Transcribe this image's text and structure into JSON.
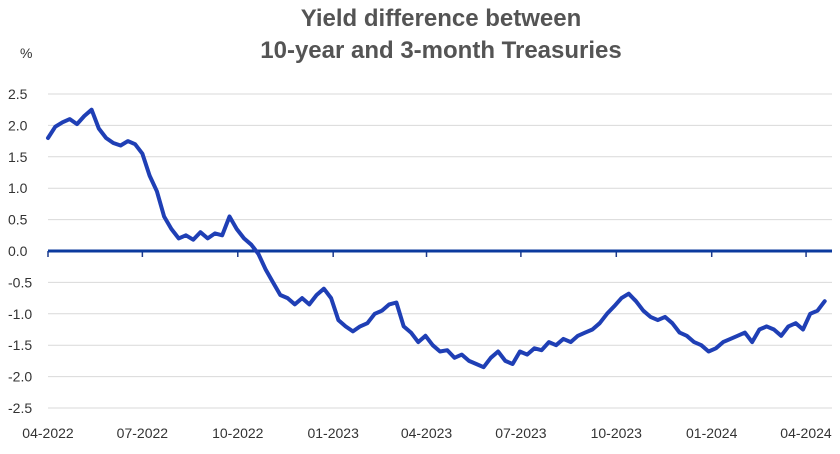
{
  "chart_data": {
    "type": "line",
    "title": [
      "Yield difference between",
      "10-year and 3-month Treasuries"
    ],
    "ylabel": "%",
    "xlabel": "",
    "ylim": [
      -2.5,
      2.5
    ],
    "y_ticks": [
      "2.5",
      "2.0",
      "1.5",
      "1.0",
      "0.5",
      "0.0",
      "-0.5",
      "-1.0",
      "-1.5",
      "-2.0",
      "-2.5"
    ],
    "x_ticks": [
      "04-2022",
      "07-2022",
      "10-2022",
      "01-2023",
      "04-2023",
      "07-2023",
      "10-2023",
      "01-2024",
      "04-2024"
    ],
    "grid": true,
    "colors": {
      "series": "#1f3fb5",
      "zero_line": "#0b3a9e",
      "grid": "#d9d9d9",
      "title": "#545454"
    },
    "series": [
      {
        "x": [
          "2022-04-01",
          "2022-04-08",
          "2022-04-15",
          "2022-04-22",
          "2022-04-29",
          "2022-05-06",
          "2022-05-13",
          "2022-05-20",
          "2022-05-27",
          "2022-06-03",
          "2022-06-10",
          "2022-06-17",
          "2022-06-24",
          "2022-07-01",
          "2022-07-08",
          "2022-07-15",
          "2022-07-22",
          "2022-07-29",
          "2022-08-05",
          "2022-08-12",
          "2022-08-19",
          "2022-08-26",
          "2022-09-02",
          "2022-09-09",
          "2022-09-16",
          "2022-09-23",
          "2022-09-30",
          "2022-10-07",
          "2022-10-14",
          "2022-10-21",
          "2022-10-28",
          "2022-11-04",
          "2022-11-11",
          "2022-11-18",
          "2022-11-25",
          "2022-12-02",
          "2022-12-09",
          "2022-12-16",
          "2022-12-23",
          "2022-12-30",
          "2023-01-06",
          "2023-01-13",
          "2023-01-20",
          "2023-01-27",
          "2023-02-03",
          "2023-02-10",
          "2023-02-17",
          "2023-02-24",
          "2023-03-03",
          "2023-03-10",
          "2023-03-17",
          "2023-03-24",
          "2023-03-31",
          "2023-04-07",
          "2023-04-14",
          "2023-04-21",
          "2023-04-28",
          "2023-05-05",
          "2023-05-12",
          "2023-05-19",
          "2023-05-26",
          "2023-06-02",
          "2023-06-09",
          "2023-06-16",
          "2023-06-23",
          "2023-06-30",
          "2023-07-07",
          "2023-07-14",
          "2023-07-21",
          "2023-07-28",
          "2023-08-04",
          "2023-08-11",
          "2023-08-18",
          "2023-08-25",
          "2023-09-01",
          "2023-09-08",
          "2023-09-15",
          "2023-09-22",
          "2023-09-29",
          "2023-10-06",
          "2023-10-13",
          "2023-10-20",
          "2023-10-27",
          "2023-11-03",
          "2023-11-10",
          "2023-11-17",
          "2023-11-24",
          "2023-12-01",
          "2023-12-08",
          "2023-12-15",
          "2023-12-22",
          "2023-12-29",
          "2024-01-05",
          "2024-01-12",
          "2024-01-19",
          "2024-01-26",
          "2024-02-02",
          "2024-02-09",
          "2024-02-16",
          "2024-02-23",
          "2024-03-01",
          "2024-03-08",
          "2024-03-15",
          "2024-03-22",
          "2024-03-29",
          "2024-04-05",
          "2024-04-12",
          "2024-04-19"
        ],
        "values": [
          1.8,
          1.98,
          2.05,
          2.1,
          2.02,
          2.15,
          2.25,
          1.95,
          1.8,
          1.72,
          1.68,
          1.75,
          1.7,
          1.55,
          1.2,
          0.95,
          0.55,
          0.35,
          0.2,
          0.25,
          0.18,
          0.3,
          0.2,
          0.28,
          0.25,
          0.55,
          0.35,
          0.2,
          0.1,
          -0.05,
          -0.3,
          -0.5,
          -0.7,
          -0.75,
          -0.85,
          -0.75,
          -0.85,
          -0.7,
          -0.6,
          -0.75,
          -1.1,
          -1.2,
          -1.28,
          -1.2,
          -1.15,
          -1.0,
          -0.95,
          -0.85,
          -0.82,
          -1.2,
          -1.3,
          -1.45,
          -1.35,
          -1.5,
          -1.6,
          -1.58,
          -1.7,
          -1.65,
          -1.75,
          -1.8,
          -1.85,
          -1.7,
          -1.6,
          -1.75,
          -1.8,
          -1.6,
          -1.65,
          -1.55,
          -1.58,
          -1.45,
          -1.5,
          -1.4,
          -1.45,
          -1.35,
          -1.3,
          -1.25,
          -1.15,
          -1.0,
          -0.88,
          -0.75,
          -0.68,
          -0.8,
          -0.95,
          -1.05,
          -1.1,
          -1.05,
          -1.15,
          -1.3,
          -1.35,
          -1.45,
          -1.5,
          -1.6,
          -1.55,
          -1.45,
          -1.4,
          -1.35,
          -1.3,
          -1.45,
          -1.25,
          -1.2,
          -1.25,
          -1.35,
          -1.2,
          -1.15,
          -1.25,
          -1.0,
          -0.95,
          -0.8
        ]
      }
    ]
  }
}
